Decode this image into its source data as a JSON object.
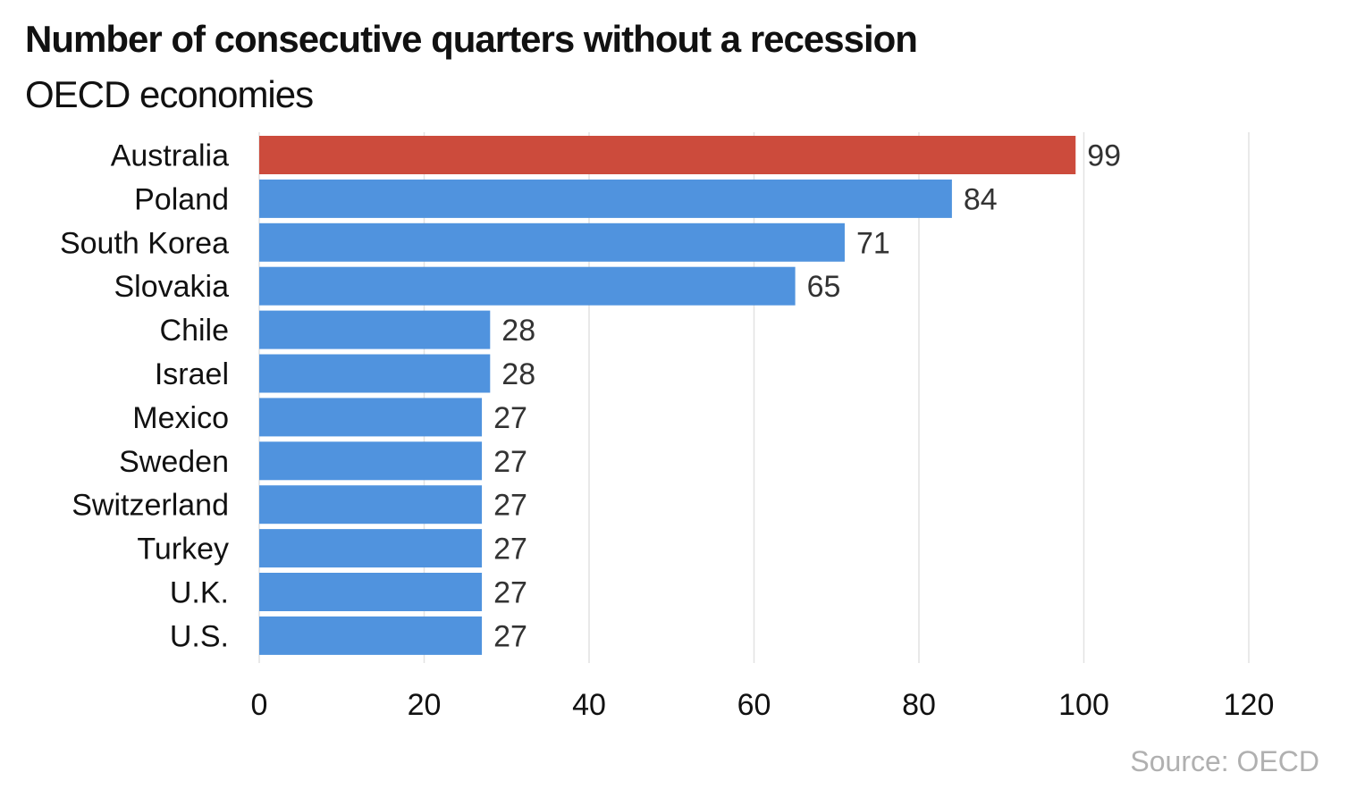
{
  "colors": {
    "highlight": "#cc4b3c",
    "bar": "#5093de",
    "grid": "#e2e2e2",
    "text": "#111111",
    "value_text": "#333333",
    "source_text": "#b0b0b0"
  },
  "source": "Source: OECD",
  "chart_data": {
    "type": "bar",
    "orientation": "horizontal",
    "title": "Number of consecutive quarters without a recession",
    "subtitle": "OECD economies",
    "categories": [
      "Australia",
      "Poland",
      "South Korea",
      "Slovakia",
      "Chile",
      "Israel",
      "Mexico",
      "Sweden",
      "Switzerland",
      "Turkey",
      "U.K.",
      "U.S."
    ],
    "values": [
      99,
      84,
      71,
      65,
      28,
      28,
      27,
      27,
      27,
      27,
      27,
      27
    ],
    "highlight_category": "Australia",
    "xlim": [
      0,
      120
    ],
    "xticks": [
      0,
      20,
      40,
      60,
      80,
      100,
      120
    ],
    "grid": true,
    "data_labels": true
  }
}
